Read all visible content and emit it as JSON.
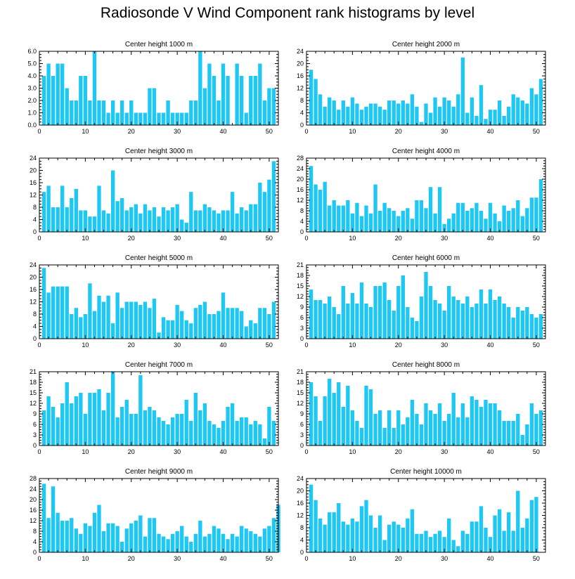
{
  "title": "Radiosonde V Wind Component rank histograms by level",
  "colors": {
    "bar": "#1ec8f5",
    "axis": "#000000",
    "background": "#ffffff"
  },
  "chart_data": [
    {
      "type": "bar",
      "title": "Center height 1000 m",
      "xticks": [
        0,
        10,
        20,
        30,
        40,
        50
      ],
      "xlim": [
        0,
        52
      ],
      "ylim": [
        0,
        6
      ],
      "yticks": [
        "0.0",
        "1.0",
        "2.0",
        "3.0",
        "4.0",
        "5.0",
        "6.0"
      ],
      "values": [
        4,
        5,
        4,
        5,
        5,
        3,
        2,
        2,
        4,
        4,
        2,
        6,
        2,
        2,
        1,
        2,
        1,
        2,
        1,
        2,
        1,
        1,
        1,
        3,
        3,
        1,
        1,
        2,
        1,
        1,
        1,
        1,
        2,
        2,
        6,
        3,
        5,
        4,
        2,
        5,
        4,
        0,
        5,
        4,
        1,
        4,
        4,
        5,
        2,
        3,
        3
      ]
    },
    {
      "type": "bar",
      "title": "Center height 2000 m",
      "xticks": [
        0,
        10,
        20,
        30,
        40,
        50
      ],
      "xlim": [
        0,
        52
      ],
      "ylim": [
        0,
        24
      ],
      "yticks": [
        "0",
        "4",
        "8",
        "12",
        "16",
        "20",
        "24"
      ],
      "values": [
        18,
        15,
        10,
        6,
        9,
        8,
        5,
        8,
        6,
        9,
        7,
        5,
        6,
        7,
        7,
        6,
        5,
        8,
        8,
        7,
        8,
        7,
        10,
        6,
        1,
        7,
        4,
        9,
        6,
        9,
        8,
        6,
        10,
        22,
        4,
        9,
        3,
        13,
        2,
        5,
        5,
        8,
        3,
        6,
        10,
        9,
        8,
        7,
        12,
        10,
        15
      ]
    },
    {
      "type": "bar",
      "title": "Center height 3000 m",
      "xticks": [
        0,
        10,
        20,
        30,
        40,
        50
      ],
      "xlim": [
        0,
        52
      ],
      "ylim": [
        0,
        24
      ],
      "yticks": [
        "0",
        "4",
        "8",
        "12",
        "16",
        "20",
        "24"
      ],
      "values": [
        13,
        15,
        8,
        8,
        15,
        8,
        11,
        14,
        7,
        7,
        5,
        5,
        15,
        7,
        6,
        20,
        10,
        11,
        7,
        8,
        9,
        6,
        9,
        7,
        8,
        5,
        8,
        7,
        8,
        9,
        4,
        3,
        13,
        7,
        7,
        9,
        8,
        7,
        6,
        7,
        7,
        13,
        6,
        8,
        7,
        9,
        9,
        16,
        13,
        17,
        23
      ]
    },
    {
      "type": "bar",
      "title": "Center height 4000 m",
      "xticks": [
        0,
        10,
        20,
        30,
        40,
        50
      ],
      "xlim": [
        0,
        52
      ],
      "ylim": [
        0,
        28
      ],
      "yticks": [
        "0",
        "4",
        "8",
        "12",
        "16",
        "20",
        "24",
        "28"
      ],
      "values": [
        25,
        18,
        16,
        19,
        10,
        12,
        10,
        10,
        12,
        7,
        11,
        6,
        10,
        7,
        18,
        8,
        11,
        9,
        8,
        6,
        8,
        9,
        5,
        12,
        12,
        9,
        17,
        7,
        17,
        3,
        5,
        7,
        11,
        11,
        8,
        9,
        11,
        8,
        5,
        11,
        7,
        4,
        10,
        8,
        9,
        12,
        6,
        9,
        13,
        13,
        20
      ]
    },
    {
      "type": "bar",
      "title": "Center height 5000 m",
      "xticks": [
        0,
        10,
        20,
        30,
        40,
        50
      ],
      "xlim": [
        0,
        52
      ],
      "ylim": [
        0,
        24
      ],
      "yticks": [
        "0",
        "4",
        "8",
        "12",
        "16",
        "20",
        "24"
      ],
      "values": [
        23,
        15,
        17,
        17,
        17,
        17,
        8,
        10,
        7,
        8,
        18,
        9,
        14,
        12,
        14,
        5,
        15,
        10,
        12,
        12,
        12,
        11,
        12,
        10,
        13,
        2,
        7,
        6,
        6,
        11,
        9,
        6,
        5,
        10,
        11,
        12,
        8,
        8,
        9,
        15,
        10,
        10,
        10,
        9,
        4,
        6,
        5,
        10,
        10,
        8,
        12
      ]
    },
    {
      "type": "bar",
      "title": "Center height 6000 m",
      "xticks": [
        0,
        10,
        20,
        30,
        40,
        50
      ],
      "xlim": [
        0,
        52
      ],
      "ylim": [
        0,
        21
      ],
      "yticks": [
        "0",
        "3",
        "6",
        "9",
        "12",
        "15",
        "18",
        "21"
      ],
      "values": [
        14,
        11,
        11,
        10,
        12,
        9,
        7,
        15,
        10,
        13,
        10,
        16,
        10,
        9,
        15,
        15,
        16,
        11,
        8,
        15,
        18,
        9,
        6,
        5,
        12,
        19,
        15,
        11,
        10,
        8,
        15,
        12,
        11,
        10,
        12,
        9,
        10,
        14,
        10,
        14,
        11,
        12,
        10,
        9,
        6,
        9,
        8,
        9,
        7,
        6,
        7
      ]
    },
    {
      "type": "bar",
      "title": "Center height 7000 m",
      "xticks": [
        0,
        10,
        20,
        30,
        40,
        50
      ],
      "xlim": [
        0,
        52
      ],
      "ylim": [
        0,
        21
      ],
      "yticks": [
        "0",
        "3",
        "6",
        "9",
        "12",
        "15",
        "18",
        "21"
      ],
      "values": [
        10,
        14,
        11,
        8,
        12,
        18,
        12,
        14,
        15,
        9,
        15,
        15,
        16,
        10,
        15,
        21,
        8,
        11,
        13,
        9,
        9,
        20,
        10,
        11,
        10,
        8,
        7,
        6,
        8,
        9,
        9,
        13,
        7,
        15,
        10,
        12,
        7,
        6,
        5,
        7,
        11,
        12,
        7,
        8,
        8,
        6,
        7,
        6,
        2,
        11,
        7
      ]
    },
    {
      "type": "bar",
      "title": "Center height 8000 m",
      "xticks": [
        0,
        10,
        20,
        30,
        40,
        50
      ],
      "xlim": [
        0,
        52
      ],
      "ylim": [
        0,
        21
      ],
      "yticks": [
        "0",
        "3",
        "6",
        "9",
        "12",
        "15",
        "18",
        "21"
      ],
      "values": [
        18,
        14,
        7,
        14,
        19,
        15,
        18,
        11,
        17,
        10,
        7,
        5,
        17,
        16,
        9,
        10,
        5,
        10,
        5,
        10,
        6,
        8,
        13,
        9,
        6,
        12,
        10,
        9,
        12,
        7,
        9,
        15,
        8,
        12,
        8,
        14,
        13,
        11,
        13,
        12,
        12,
        10,
        7,
        7,
        7,
        9,
        3,
        6,
        12,
        9,
        10
      ]
    },
    {
      "type": "bar",
      "title": "Center height 9000 m",
      "xticks": [
        0,
        10,
        20,
        30,
        40,
        50
      ],
      "xlim": [
        0,
        52
      ],
      "ylim": [
        0,
        28
      ],
      "yticks": [
        "0",
        "4",
        "8",
        "12",
        "16",
        "20",
        "24",
        "28"
      ],
      "values": [
        26,
        13,
        25,
        15,
        12,
        12,
        13,
        9,
        7,
        11,
        10,
        15,
        18,
        8,
        11,
        11,
        10,
        4,
        9,
        11,
        12,
        14,
        6,
        13,
        13,
        7,
        6,
        5,
        7,
        8,
        10,
        6,
        4,
        7,
        12,
        6,
        7,
        10,
        9,
        7,
        5,
        7,
        6,
        10,
        9,
        8,
        7,
        6,
        9,
        10,
        13,
        18
      ]
    },
    {
      "type": "bar",
      "title": "Center height 10000 m",
      "xticks": [
        0,
        10,
        20,
        30,
        40,
        50
      ],
      "xlim": [
        0,
        52
      ],
      "ylim": [
        0,
        24
      ],
      "yticks": [
        "0",
        "4",
        "8",
        "12",
        "16",
        "20",
        "24"
      ],
      "values": [
        22,
        17,
        11,
        9,
        13,
        13,
        16,
        10,
        9,
        11,
        10,
        15,
        17,
        12,
        8,
        12,
        4,
        9,
        10,
        9,
        8,
        11,
        14,
        6,
        6,
        7,
        5,
        6,
        7,
        5,
        11,
        4,
        2,
        7,
        6,
        10,
        10,
        15,
        8,
        5,
        12,
        14,
        7,
        13,
        7,
        20,
        8,
        11,
        17,
        18
      ]
    }
  ]
}
